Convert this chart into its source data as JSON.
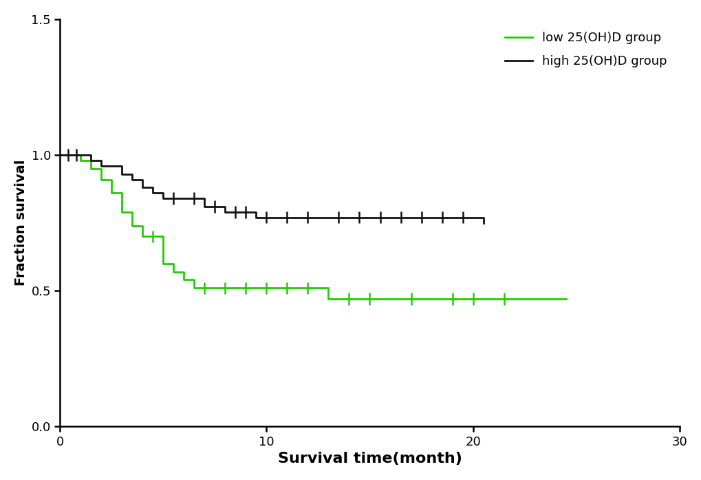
{
  "title": "",
  "xlabel": "Survival time(month)",
  "ylabel": "Fraction survival",
  "xlim": [
    0,
    30
  ],
  "ylim": [
    0.0,
    1.5
  ],
  "yticks": [
    0.0,
    0.5,
    1.0,
    1.5
  ],
  "xticks": [
    0,
    10,
    20,
    30
  ],
  "background_color": "#ffffff",
  "low_color": "#22cc00",
  "high_color": "#111111",
  "low_label": "low 25(OH)D group",
  "high_label": "high 25(OH)D group",
  "line_width": 2.0,
  "high_times": [
    0,
    1.0,
    1.5,
    2.0,
    3.0,
    3.5,
    4.0,
    4.5,
    5.0,
    6.0,
    7.0,
    8.0,
    9.5,
    13.0,
    20.5
  ],
  "high_survival": [
    1.0,
    1.0,
    0.98,
    0.96,
    0.93,
    0.91,
    0.88,
    0.86,
    0.84,
    0.84,
    0.81,
    0.79,
    0.77,
    0.77,
    0.75
  ],
  "high_censors_t": [
    0.4,
    0.8,
    5.5,
    6.5,
    7.5,
    8.5,
    9.0,
    10.0,
    11.0,
    12.0,
    13.5,
    14.5,
    15.5,
    16.5,
    17.5,
    18.5,
    19.5
  ],
  "high_censors_s": [
    1.0,
    1.0,
    0.84,
    0.84,
    0.81,
    0.79,
    0.79,
    0.77,
    0.77,
    0.77,
    0.77,
    0.77,
    0.77,
    0.77,
    0.77,
    0.77,
    0.77
  ],
  "low_times": [
    0,
    1.0,
    1.5,
    2.0,
    2.5,
    3.0,
    3.5,
    4.0,
    5.0,
    5.5,
    6.0,
    6.5,
    7.5,
    12.5,
    13.0,
    24.5
  ],
  "low_survival": [
    1.0,
    0.98,
    0.95,
    0.91,
    0.86,
    0.79,
    0.74,
    0.7,
    0.6,
    0.57,
    0.54,
    0.51,
    0.51,
    0.51,
    0.47,
    0.47
  ],
  "low_censors_t": [
    4.5,
    7.0,
    8.0,
    9.0,
    10.0,
    11.0,
    12.0,
    14.0,
    15.0,
    17.0,
    19.0,
    20.0,
    21.5
  ],
  "low_censors_s": [
    0.7,
    0.51,
    0.51,
    0.51,
    0.51,
    0.51,
    0.51,
    0.47,
    0.47,
    0.47,
    0.47,
    0.47,
    0.47
  ],
  "censor_size": 0.022,
  "censor_lw": 1.8
}
